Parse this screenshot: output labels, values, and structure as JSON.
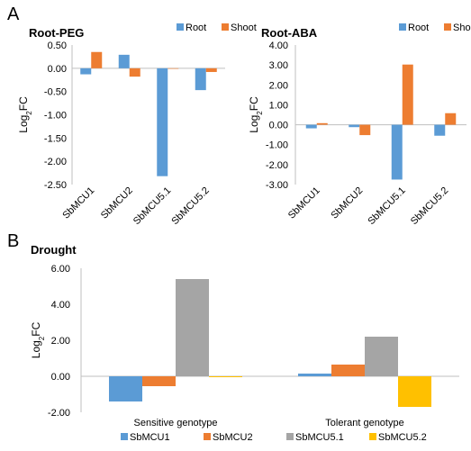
{
  "panels": {
    "A": "A",
    "B": "B"
  },
  "chart_data": [
    {
      "type": "bar",
      "title": "Root-PEG",
      "ylabel_main": "Log",
      "ylabel_sub": "2",
      "ylabel_tail": "FC",
      "categories": [
        "SbMCU1",
        "SbMCU2",
        "SbMCU5.1",
        "SbMCU5.2"
      ],
      "series": [
        {
          "name": "Root",
          "color": "#5b9bd5",
          "values": [
            -0.13,
            0.29,
            -2.32,
            -0.47
          ]
        },
        {
          "name": "Shoot",
          "color": "#ed7d31",
          "values": [
            0.35,
            -0.18,
            0.0,
            -0.08
          ]
        }
      ],
      "ylim": [
        -2.5,
        0.5
      ],
      "yticks": [
        "-2.50",
        "-2.00",
        "-1.50",
        "-1.00",
        "-0.50",
        "0.00",
        "0.50"
      ],
      "legend": "top-right",
      "grid": false
    },
    {
      "type": "bar",
      "title": "Root-ABA",
      "ylabel_main": "Log",
      "ylabel_sub": "2",
      "ylabel_tail": "FC",
      "categories": [
        "SbMCU1",
        "SbMCU2",
        "SbMCU5.1",
        "SbMCU5.2"
      ],
      "series": [
        {
          "name": "Root",
          "color": "#5b9bd5",
          "values": [
            -0.18,
            -0.12,
            -2.75,
            -0.55
          ]
        },
        {
          "name": "Shoot",
          "color": "#ed7d31",
          "values": [
            0.08,
            -0.52,
            3.02,
            0.58
          ]
        }
      ],
      "ylim": [
        -3.0,
        4.0
      ],
      "yticks": [
        "-3.00",
        "-2.00",
        "-1.00",
        "0.00",
        "1.00",
        "2.00",
        "3.00",
        "4.00"
      ],
      "legend": "top-right",
      "grid": false
    },
    {
      "type": "bar",
      "title": "Drought",
      "ylabel_main": "Log",
      "ylabel_sub": "2",
      "ylabel_tail": "FC",
      "categories": [
        "Sensitive genotype",
        "Tolerant genotype"
      ],
      "series": [
        {
          "name": "SbMCU1",
          "color": "#5b9bd5",
          "values": [
            -1.4,
            0.15
          ]
        },
        {
          "name": "SbMCU2",
          "color": "#ed7d31",
          "values": [
            -0.55,
            0.65
          ]
        },
        {
          "name": "SbMCU5.1",
          "color": "#a5a5a5",
          "values": [
            5.4,
            2.2
          ]
        },
        {
          "name": "SbMCU5.2",
          "color": "#ffc000",
          "values": [
            -0.05,
            -1.7
          ]
        }
      ],
      "ylim": [
        -2.0,
        6.0
      ],
      "yticks": [
        "-2.00",
        "0.00",
        "2.00",
        "4.00",
        "6.00"
      ],
      "legend": "bottom",
      "grid": false
    }
  ]
}
